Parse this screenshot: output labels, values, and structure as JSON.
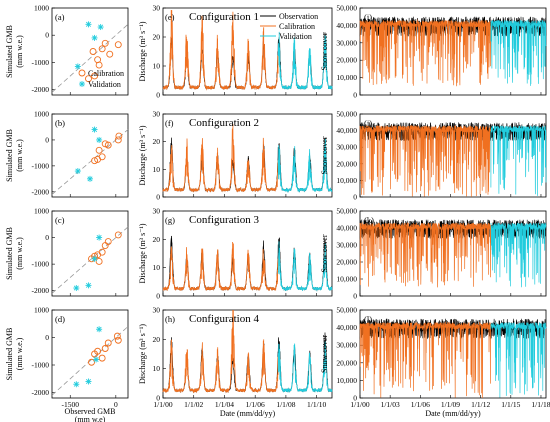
{
  "figure": {
    "panel_labels": [
      "(a)",
      "(b)",
      "(c)",
      "(d)",
      "(e)",
      "(f)",
      "(g)",
      "(h)",
      "(i)",
      "(j)",
      "(k)",
      "(l)"
    ],
    "configs": [
      "Configuration 1",
      "Configuration 2",
      "Configuration 3",
      "Configuration 4"
    ],
    "gmb_ylabel_1": "Simulated GMB",
    "gmb_ylabel_2": "(mm w.e.)",
    "gmb_xlabel_1": "Observed GMB",
    "gmb_xlabel_2": "(mm w.e)",
    "q_ylabel": "Discharge (m³ s⁻¹)",
    "sc_ylabel": "Snow cover",
    "date_xlabel": "Date (mm/dd/yy)",
    "legend_gmb": [
      "Calibration",
      "Validation"
    ],
    "legend_q": [
      "Observation",
      "Calibration",
      "Validation"
    ]
  },
  "colors": {
    "observation": "#000000",
    "calibration": "#f07020",
    "validation": "#22ccdd",
    "oneline": "#999999"
  },
  "chart_data": [
    {
      "type": "scatter",
      "panel": "(a)",
      "xlabel": "",
      "ylabel": "Simulated GMB (mm w.e.)",
      "xlim": [
        -2100,
        400
      ],
      "ylim": [
        -2200,
        1000
      ],
      "xticks": [
        -1500,
        0
      ],
      "yticks": [
        -2000,
        -1000,
        0,
        1000
      ],
      "one_to_one_line": true,
      "series": [
        {
          "name": "Calibration",
          "marker": "circle",
          "x": [
            -750,
            -600,
            -450,
            -350,
            -200,
            -700,
            -900,
            -550,
            80
          ],
          "y": [
            -600,
            -900,
            -500,
            -300,
            -700,
            -1500,
            -1600,
            -1100,
            -350
          ]
        },
        {
          "name": "Validation",
          "marker": "star",
          "x": [
            -900,
            -1250,
            -700,
            -500
          ],
          "y": [
            400,
            -1150,
            -100,
            300
          ]
        }
      ]
    },
    {
      "type": "scatter",
      "panel": "(b)",
      "xlabel": "",
      "ylabel": "Simulated GMB (mm w.e.)",
      "xlim": [
        -2100,
        400
      ],
      "ylim": [
        -2200,
        1000
      ],
      "xticks": [
        -1500,
        0
      ],
      "yticks": [
        -2000,
        -1000,
        0,
        1000
      ],
      "one_to_one_line": true,
      "series": [
        {
          "name": "Calibration",
          "marker": "circle",
          "x": [
            -700,
            -600,
            -450,
            -350,
            -250,
            80,
            100,
            -550
          ],
          "y": [
            -800,
            -750,
            -650,
            -150,
            -200,
            0,
            150,
            -400
          ]
        },
        {
          "name": "Validation",
          "marker": "star",
          "x": [
            -1250,
            -850,
            -700,
            -550
          ],
          "y": [
            -1200,
            -1500,
            400,
            0
          ]
        }
      ]
    },
    {
      "type": "scatter",
      "panel": "(c)",
      "xlabel": "",
      "ylabel": "Simulated GMB (mm w.e.)",
      "xlim": [
        -2100,
        400
      ],
      "ylim": [
        -2200,
        1000
      ],
      "xticks": [
        -1500,
        0
      ],
      "yticks": [
        -2000,
        -1000,
        0,
        1000
      ],
      "one_to_one_line": true,
      "series": [
        {
          "name": "Calibration",
          "marker": "circle",
          "x": [
            -700,
            -600,
            -450,
            -350,
            -250,
            80,
            -550,
            -800
          ],
          "y": [
            -700,
            -650,
            -550,
            -300,
            -150,
            100,
            -900,
            -800
          ]
        },
        {
          "name": "Validation",
          "marker": "star",
          "x": [
            -1300,
            -900,
            -700,
            -550
          ],
          "y": [
            -1900,
            -1800,
            -800,
            0
          ]
        }
      ]
    },
    {
      "type": "scatter",
      "panel": "(d)",
      "xlabel": "Observed GMB (mm w.e)",
      "ylabel": "Simulated GMB (mm w.e.)",
      "xlim": [
        -2100,
        400
      ],
      "ylim": [
        -2200,
        1000
      ],
      "xticks": [
        -1500,
        0
      ],
      "yticks": [
        -2000,
        -1000,
        0,
        1000
      ],
      "one_to_one_line": true,
      "series": [
        {
          "name": "Calibration",
          "marker": "circle",
          "x": [
            -700,
            -600,
            -450,
            -350,
            -250,
            50,
            80,
            -800
          ],
          "y": [
            -600,
            -500,
            -750,
            -400,
            -200,
            50,
            -100,
            -900
          ]
        },
        {
          "name": "Validation",
          "marker": "star",
          "x": [
            -1300,
            -900,
            -650,
            -550
          ],
          "y": [
            -1700,
            -1600,
            -800,
            300
          ]
        }
      ]
    },
    {
      "type": "line",
      "panel": "(e)",
      "title": "Configuration 1",
      "xlabel": "",
      "ylabel": "Discharge (m³ s⁻¹)",
      "xlim": [
        2000.0,
        2011.0
      ],
      "ylim": [
        0,
        30
      ],
      "xticks": [
        "1/1/00",
        "1/1/02",
        "1/1/04",
        "1/1/06",
        "1/1/08",
        "1/1/10"
      ],
      "yticks": [
        0,
        10,
        20,
        30
      ],
      "calibration_period": [
        2000.0,
        2007.5
      ],
      "validation_period": [
        2007.5,
        2011.0
      ],
      "annual_peaks": {
        "years": [
          2000,
          2001,
          2002,
          2003,
          2004,
          2005,
          2006,
          2007,
          2008,
          2009,
          2010
        ],
        "observation": [
          20,
          13,
          16,
          15,
          13,
          14,
          18,
          20,
          17,
          15,
          21
        ],
        "simulated": [
          27,
          22,
          24,
          19,
          28,
          17,
          21,
          19,
          17,
          16,
          20
        ]
      }
    },
    {
      "type": "line",
      "panel": "(f)",
      "title": "Configuration 2",
      "xlabel": "",
      "ylabel": "Discharge (m³ s⁻¹)",
      "xlim": [
        2000.0,
        2011.0
      ],
      "ylim": [
        0,
        30
      ],
      "xticks": [
        "1/1/00",
        "1/1/02",
        "1/1/04",
        "1/1/06",
        "1/1/08",
        "1/1/10"
      ],
      "yticks": [
        0,
        10,
        20,
        30
      ],
      "calibration_period": [
        2000.0,
        2007.5
      ],
      "validation_period": [
        2007.5,
        2011.0
      ],
      "annual_peaks": {
        "years": [
          2000,
          2001,
          2002,
          2003,
          2004,
          2005,
          2006,
          2007,
          2008,
          2009,
          2010
        ],
        "observation": [
          20,
          13,
          16,
          15,
          13,
          14,
          18,
          20,
          17,
          15,
          21
        ],
        "simulated": [
          18,
          18,
          19,
          16,
          24,
          14,
          20,
          17,
          16,
          15,
          19
        ]
      }
    },
    {
      "type": "line",
      "panel": "(g)",
      "title": "Configuration 3",
      "xlabel": "",
      "ylabel": "Discharge (m³ s⁻¹)",
      "xlim": [
        2000.0,
        2011.0
      ],
      "ylim": [
        0,
        30
      ],
      "xticks": [
        "1/1/00",
        "1/1/02",
        "1/1/04",
        "1/1/06",
        "1/1/08",
        "1/1/10"
      ],
      "yticks": [
        0,
        10,
        20,
        30
      ],
      "calibration_period": [
        2000.0,
        2007.5
      ],
      "validation_period": [
        2007.5,
        2011.0
      ],
      "annual_peaks": {
        "years": [
          2000,
          2001,
          2002,
          2003,
          2004,
          2005,
          2006,
          2007,
          2008,
          2009,
          2010
        ],
        "observation": [
          20,
          13,
          16,
          15,
          13,
          14,
          18,
          20,
          17,
          15,
          21
        ],
        "simulated": [
          16,
          15,
          16,
          15,
          18,
          15,
          16,
          17,
          15,
          14,
          16
        ]
      }
    },
    {
      "type": "line",
      "panel": "(h)",
      "title": "Configuration 4",
      "xlabel": "Date (mm/dd/yy)",
      "ylabel": "Discharge (m³ s⁻¹)",
      "xlim": [
        2000.0,
        2011.0
      ],
      "ylim": [
        0,
        30
      ],
      "xticks": [
        "1/1/00",
        "1/1/02",
        "1/1/04",
        "1/1/06",
        "1/1/08",
        "1/1/10"
      ],
      "yticks": [
        0,
        10,
        20,
        30
      ],
      "calibration_period": [
        2000.0,
        2007.5
      ],
      "validation_period": [
        2007.5,
        2011.0
      ],
      "annual_peaks": {
        "years": [
          2000,
          2001,
          2002,
          2003,
          2004,
          2005,
          2006,
          2007,
          2008,
          2009,
          2010
        ],
        "observation": [
          20,
          13,
          16,
          15,
          13,
          14,
          18,
          20,
          17,
          15,
          21
        ],
        "simulated": [
          17,
          17,
          18,
          15,
          29,
          14,
          18,
          17,
          16,
          14,
          17
        ]
      }
    },
    {
      "type": "line",
      "panel": "(i)",
      "xlabel": "",
      "ylabel": "Snow cover",
      "xlim": [
        2000.0,
        2018.5
      ],
      "ylim": [
        0,
        50000
      ],
      "xticks": [
        "1/1/00",
        "1/1/03",
        "1/1/06",
        "1/1/09",
        "1/1/12",
        "1/1/15",
        "1/1/18"
      ],
      "yticks": [
        0,
        10000,
        20000,
        30000,
        40000,
        50000
      ],
      "calibration_period": [
        2000.0,
        2013.0
      ],
      "validation_period": [
        2013.0,
        2018.5
      ],
      "observation_range": [
        20000,
        45000
      ],
      "simulated_range": [
        5000,
        43000
      ]
    },
    {
      "type": "line",
      "panel": "(j)",
      "xlabel": "",
      "ylabel": "Snow cover",
      "xlim": [
        2000.0,
        2018.5
      ],
      "ylim": [
        0,
        50000
      ],
      "xticks": [
        "1/1/00",
        "1/1/03",
        "1/1/06",
        "1/1/09",
        "1/1/12",
        "1/1/15",
        "1/1/18"
      ],
      "yticks": [
        0,
        10000,
        20000,
        30000,
        40000,
        50000
      ],
      "calibration_period": [
        2000.0,
        2013.0
      ],
      "validation_period": [
        2013.0,
        2018.5
      ],
      "observation_range": [
        20000,
        45000
      ],
      "simulated_range": [
        0,
        43000
      ]
    },
    {
      "type": "line",
      "panel": "(k)",
      "xlabel": "",
      "ylabel": "Snow cover",
      "xlim": [
        2000.0,
        2018.5
      ],
      "ylim": [
        0,
        50000
      ],
      "xticks": [
        "1/1/00",
        "1/1/03",
        "1/1/06",
        "1/1/09",
        "1/1/12",
        "1/1/15",
        "1/1/18"
      ],
      "yticks": [
        0,
        10000,
        20000,
        30000,
        40000,
        50000
      ],
      "calibration_period": [
        2000.0,
        2013.0
      ],
      "validation_period": [
        2013.0,
        2018.5
      ],
      "observation_range": [
        20000,
        45000
      ],
      "simulated_range": [
        5000,
        43000
      ]
    },
    {
      "type": "line",
      "panel": "(l)",
      "xlabel": "Date (mm/dd/yy)",
      "ylabel": "Snow cover",
      "xlim": [
        2000.0,
        2018.5
      ],
      "ylim": [
        0,
        50000
      ],
      "xticks": [
        "1/1/00",
        "1/1/03",
        "1/1/06",
        "1/1/09",
        "1/1/12",
        "1/1/15",
        "1/1/18"
      ],
      "yticks": [
        0,
        10000,
        20000,
        30000,
        40000,
        50000
      ],
      "calibration_period": [
        2000.0,
        2013.0
      ],
      "validation_period": [
        2013.0,
        2018.5
      ],
      "observation_range": [
        20000,
        45000
      ],
      "simulated_range": [
        0,
        43000
      ]
    }
  ]
}
